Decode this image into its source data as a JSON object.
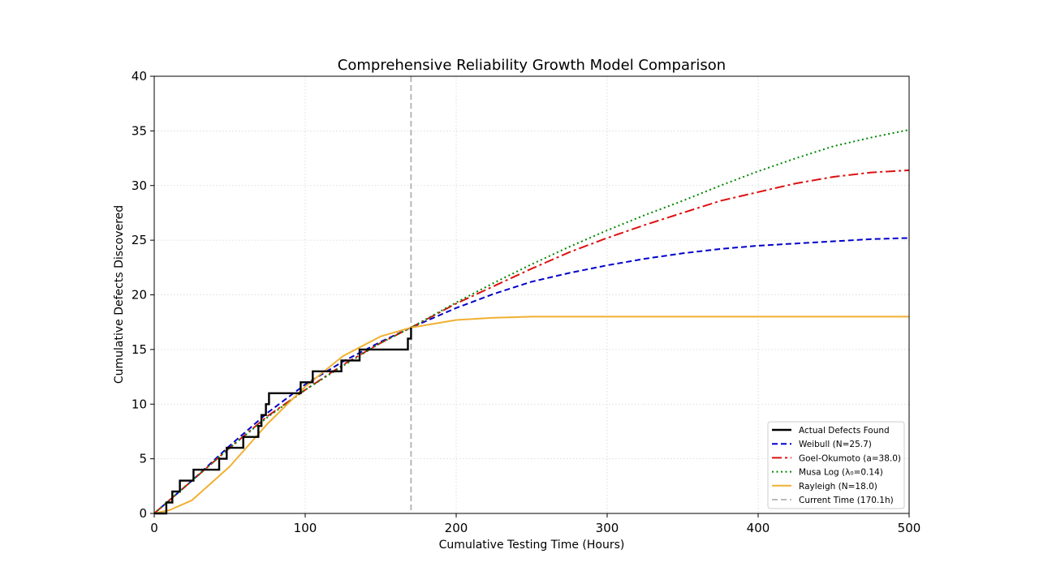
{
  "chart_data": {
    "type": "line",
    "title": "Comprehensive Reliability Growth Model Comparison",
    "xlabel": "Cumulative Testing Time (Hours)",
    "ylabel": "Cumulative Defects Discovered",
    "xlim": [
      0,
      500
    ],
    "ylim": [
      0,
      40
    ],
    "xticks": [
      "0",
      "100",
      "200",
      "300",
      "400",
      "500"
    ],
    "yticks": [
      "0",
      "5",
      "10",
      "15",
      "20",
      "25",
      "30",
      "35",
      "40"
    ],
    "grid": true,
    "legend_position": "lower-right",
    "current_time": 170.1,
    "current_time_label": "Current Time (170.1h)",
    "actual_defects": {
      "name": "Actual Defects Found",
      "color": "#000000",
      "steps": [
        [
          0,
          0
        ],
        [
          8,
          1
        ],
        [
          12,
          2
        ],
        [
          17,
          3
        ],
        [
          26,
          4
        ],
        [
          43,
          5
        ],
        [
          48,
          6
        ],
        [
          59,
          7
        ],
        [
          69,
          8
        ],
        [
          71,
          9
        ],
        [
          74,
          10
        ],
        [
          76,
          11
        ],
        [
          97,
          12
        ],
        [
          105,
          13
        ],
        [
          124,
          14
        ],
        [
          136,
          15
        ],
        [
          168,
          16
        ],
        [
          170.1,
          17
        ]
      ]
    },
    "series": [
      {
        "name": "Weibull (N=25.7)",
        "color": "#0000cc",
        "style": "dashed",
        "x": [
          0,
          25,
          50,
          75,
          100,
          125,
          150,
          170,
          200,
          225,
          250,
          275,
          300,
          325,
          350,
          375,
          400,
          425,
          450,
          475,
          500
        ],
        "y": [
          0,
          3.0,
          6.2,
          9.2,
          11.8,
          13.9,
          15.7,
          17.0,
          18.8,
          20.1,
          21.2,
          22.0,
          22.7,
          23.3,
          23.8,
          24.2,
          24.5,
          24.7,
          24.9,
          25.1,
          25.2
        ]
      },
      {
        "name": "Goel-Okumoto (a=38.0)",
        "color": "#dd1111",
        "style": "dashdot",
        "x": [
          0,
          25,
          50,
          75,
          100,
          125,
          150,
          170,
          200,
          225,
          250,
          275,
          300,
          325,
          350,
          375,
          400,
          425,
          450,
          475,
          500
        ],
        "y": [
          0,
          3.0,
          6.0,
          8.9,
          11.3,
          13.6,
          15.6,
          17.0,
          19.2,
          20.8,
          22.4,
          23.9,
          25.2,
          26.4,
          27.5,
          28.6,
          29.4,
          30.2,
          30.8,
          31.2,
          31.4
        ]
      },
      {
        "name": "Musa Log (λ₀=0.14)",
        "color": "#008800",
        "style": "dotted",
        "x": [
          0,
          25,
          50,
          75,
          100,
          125,
          150,
          170,
          200,
          225,
          250,
          275,
          300,
          325,
          350,
          375,
          400,
          425,
          450,
          475,
          500
        ],
        "y": [
          0,
          3.0,
          6.0,
          8.8,
          11.3,
          13.5,
          15.6,
          17.0,
          19.3,
          21.1,
          22.8,
          24.4,
          25.9,
          27.3,
          28.6,
          30.0,
          31.3,
          32.5,
          33.6,
          34.4,
          35.1
        ]
      },
      {
        "name": "Rayleigh (N=18.0)",
        "color": "#f0b030",
        "style": "solid",
        "x": [
          0,
          10,
          25,
          50,
          75,
          100,
          125,
          150,
          170,
          200,
          225,
          250,
          300,
          350,
          400,
          450,
          500
        ],
        "y": [
          0,
          0.3,
          1.2,
          4.3,
          8.2,
          11.6,
          14.4,
          16.2,
          17.0,
          17.7,
          17.9,
          18.0,
          18.0,
          18.0,
          18.0,
          18.0,
          18.0
        ]
      }
    ],
    "legend_entries": [
      "Actual Defects Found",
      "Weibull (N=25.7)",
      "Goel-Okumoto (a=38.0)",
      "Musa Log (λ₀=0.14)",
      "Rayleigh (N=18.0)",
      "Current Time (170.1h)"
    ]
  }
}
